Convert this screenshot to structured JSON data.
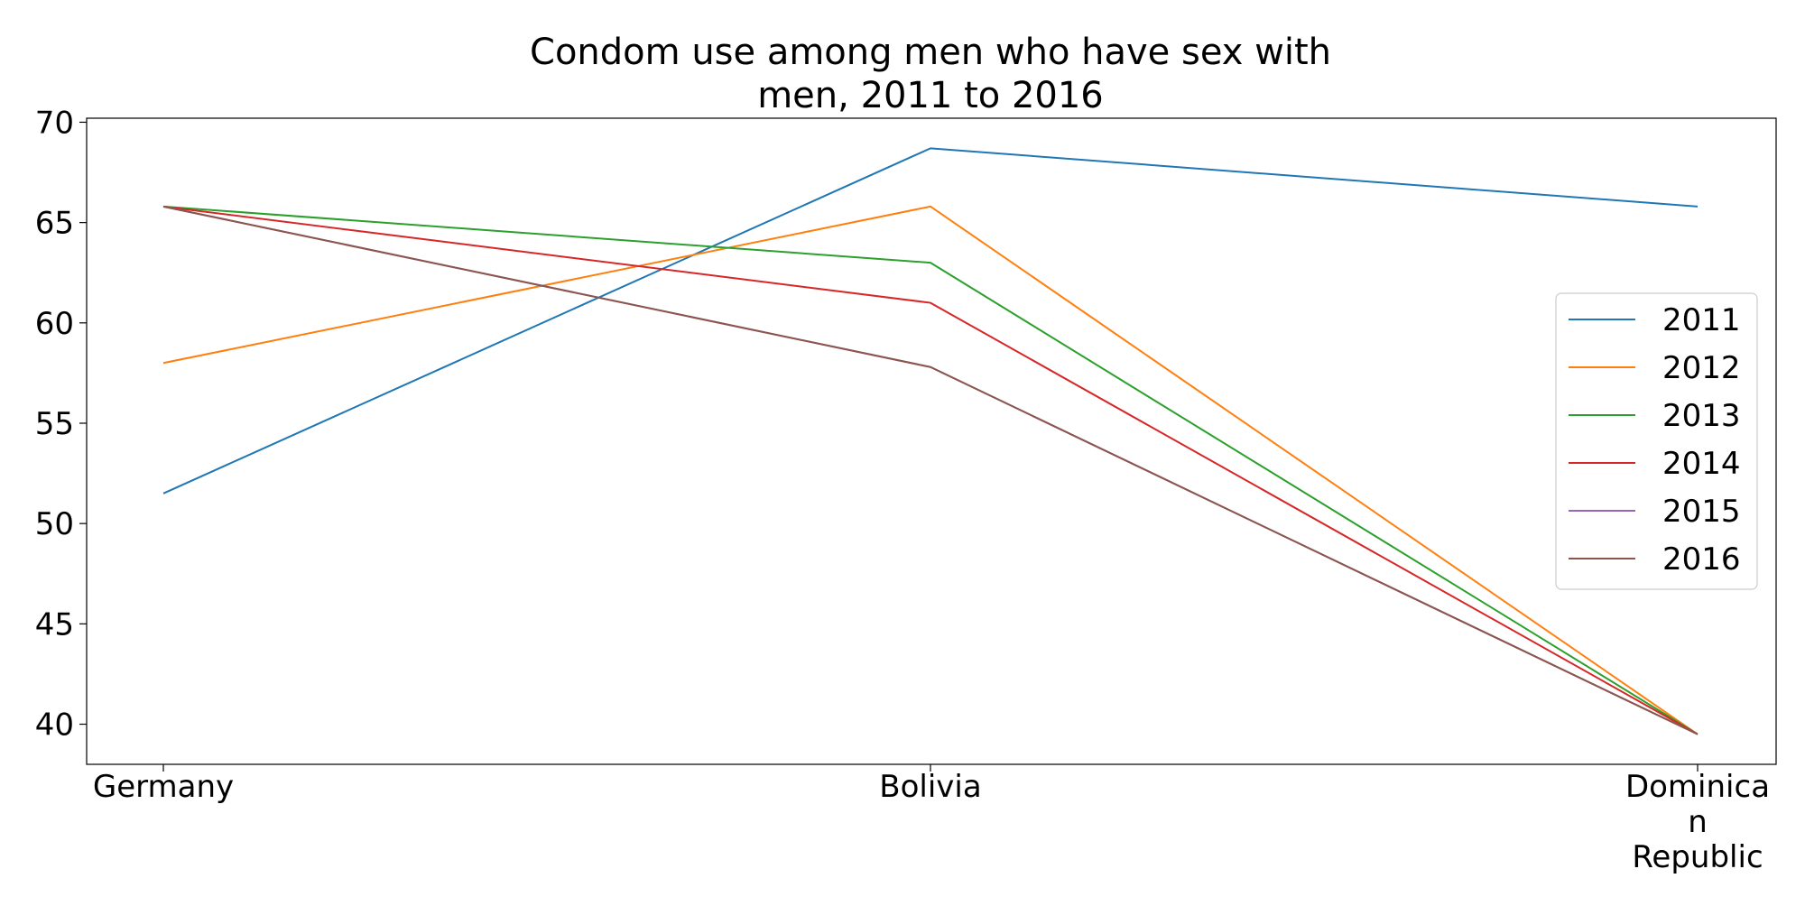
{
  "chart_data": {
    "type": "line",
    "title_lines": [
      "Condom use among men who have sex with",
      "men, 2011 to 2016"
    ],
    "xlabel": "",
    "ylabel": "",
    "categories": [
      [
        "Germany"
      ],
      [
        "Bolivia"
      ],
      [
        "Dominica",
        "n",
        "Republic"
      ]
    ],
    "ylim": [
      38,
      70.2
    ],
    "yticks": [
      40,
      45,
      50,
      55,
      60,
      65,
      70
    ],
    "grid": false,
    "legend_position": "center-right",
    "series": [
      {
        "name": "2011",
        "color": "#1f77b4",
        "values": [
          51.5,
          68.7,
          65.8
        ]
      },
      {
        "name": "2012",
        "color": "#ff7f0e",
        "values": [
          58.0,
          65.8,
          39.5
        ]
      },
      {
        "name": "2013",
        "color": "#2ca02c",
        "values": [
          65.8,
          63.0,
          39.5
        ]
      },
      {
        "name": "2014",
        "color": "#d62728",
        "values": [
          65.8,
          61.0,
          39.5
        ]
      },
      {
        "name": "2015",
        "color": "#9467bd",
        "values": [
          65.8,
          57.8,
          39.5
        ]
      },
      {
        "name": "2016",
        "color": "#8c564b",
        "values": [
          65.8,
          57.8,
          39.5
        ]
      }
    ]
  }
}
